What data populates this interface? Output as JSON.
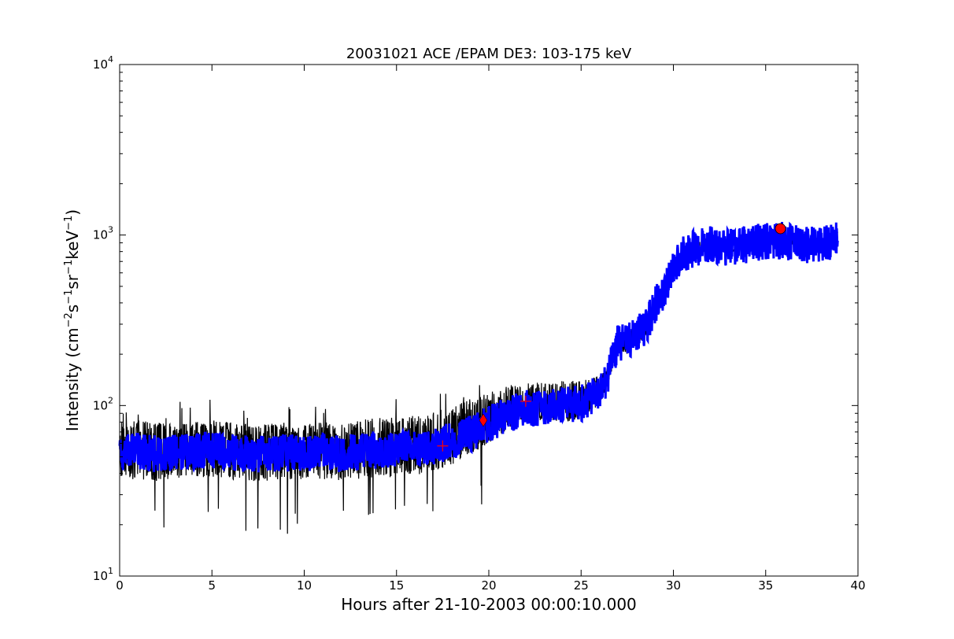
{
  "chart_data": {
    "type": "line",
    "title": "20031021 ACE /EPAM DE3: 103-175 keV",
    "xlabel": "Hours after 21-10-2003 00:00:10.000",
    "ylabel": "Intensity (cm",
    "ylabel_parts": [
      "Intensity (cm",
      "−2",
      "s",
      "−1",
      "sr",
      "−1",
      "keV",
      "−1",
      ")"
    ],
    "xlim": [
      0,
      40
    ],
    "ylim": [
      10,
      10000
    ],
    "yscale": "log",
    "grid": false,
    "x_ticks": [
      "0",
      "5",
      "10",
      "15",
      "20",
      "25",
      "30",
      "35",
      "40"
    ],
    "y_ticks": [
      {
        "base": "10",
        "exp": "1"
      },
      {
        "base": "10",
        "exp": "2"
      },
      {
        "base": "10",
        "exp": "3"
      },
      {
        "base": "10",
        "exp": "4"
      }
    ],
    "raw_series": {
      "color": "#000000",
      "x": [
        0,
        1,
        2,
        3,
        4,
        5,
        6,
        7,
        8,
        9,
        10,
        11,
        12,
        13,
        14,
        15,
        16,
        17,
        18,
        19,
        20,
        21,
        22,
        23,
        24,
        25,
        26,
        26.5,
        27,
        27.5,
        28,
        28.5,
        29,
        29.5,
        30,
        30.5,
        31,
        32,
        33,
        34,
        35,
        36,
        37,
        38,
        38.9
      ],
      "y": [
        52,
        54,
        52,
        53,
        54,
        55,
        53,
        52,
        52,
        53,
        52,
        53,
        52,
        54,
        55,
        55,
        56,
        58,
        62,
        68,
        78,
        88,
        96,
        98,
        100,
        103,
        118,
        155,
        235,
        232,
        265,
        285,
        390,
        465,
        620,
        760,
        820,
        880,
        850,
        880,
        920,
        930,
        870,
        880,
        950
      ],
      "noise_low": [
        38,
        36,
        36,
        37,
        38,
        38,
        37,
        36,
        36,
        37,
        36,
        37,
        36,
        37,
        38,
        38,
        39,
        41,
        45,
        52,
        60,
        72,
        80,
        82,
        78,
        84,
        100,
        140,
        210,
        200,
        230,
        250,
        340,
        420,
        570,
        720,
        780,
        800,
        790,
        820,
        860,
        860,
        800,
        820,
        880
      ],
      "noise_high": [
        80,
        82,
        80,
        78,
        80,
        82,
        80,
        78,
        78,
        80,
        78,
        80,
        78,
        82,
        85,
        85,
        88,
        92,
        100,
        110,
        120,
        130,
        140,
        135,
        140,
        140,
        150,
        175,
        270,
        265,
        300,
        320,
        440,
        510,
        680,
        810,
        880,
        980,
        920,
        960,
        1000,
        1010,
        940,
        960,
        1060
      ]
    },
    "smooth_series": {
      "color": "#0000ff",
      "x": [
        0,
        1,
        2,
        3,
        4,
        5,
        6,
        7,
        8,
        9,
        10,
        11,
        12,
        13,
        14,
        15,
        16,
        17,
        18,
        19,
        20,
        21,
        22,
        23,
        24,
        25,
        26,
        26.5,
        27,
        27.5,
        28,
        28.5,
        29,
        29.5,
        30,
        30.5,
        31,
        32,
        33,
        34,
        35,
        36,
        37,
        38,
        38.9
      ],
      "y": [
        53,
        54,
        52,
        53,
        54,
        55,
        53,
        52,
        52,
        53,
        52,
        53,
        52,
        54,
        55,
        55,
        56,
        58,
        62,
        68,
        78,
        88,
        96,
        98,
        100,
        103,
        118,
        155,
        235,
        232,
        265,
        285,
        390,
        465,
        620,
        760,
        820,
        880,
        850,
        880,
        920,
        930,
        870,
        880,
        950
      ]
    },
    "markers": [
      {
        "shape": "plus",
        "x": 17.5,
        "y": 58,
        "color": "#ff0000"
      },
      {
        "shape": "diamond",
        "x": 19.7,
        "y": 82,
        "color": "#ff0000"
      },
      {
        "shape": "plus",
        "x": 22.0,
        "y": 106,
        "color": "#ff0000"
      },
      {
        "shape": "circle",
        "x": 35.8,
        "y": 1090,
        "color": "#ff0000"
      }
    ]
  }
}
